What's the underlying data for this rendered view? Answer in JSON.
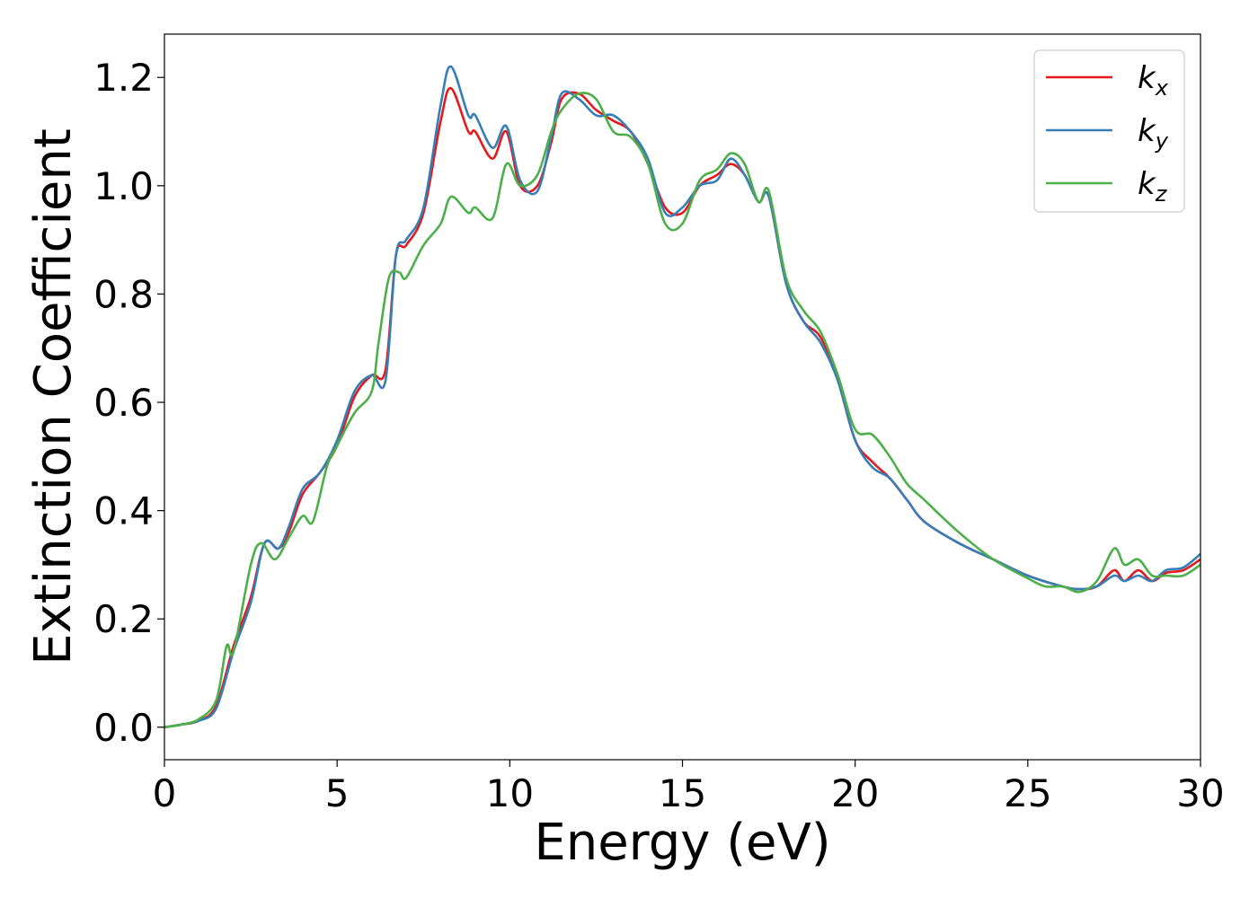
{
  "chart_data": {
    "type": "line",
    "title": "",
    "xlabel": "Energy (eV)",
    "ylabel": "Extinction Coefficient",
    "xlim": [
      0,
      30
    ],
    "ylim": [
      -0.06,
      1.28
    ],
    "xticks": [
      0,
      5,
      10,
      15,
      20,
      25,
      30
    ],
    "xtick_labels": [
      "0",
      "5",
      "10",
      "15",
      "20",
      "25",
      "30"
    ],
    "yticks": [
      0.0,
      0.2,
      0.4,
      0.6,
      0.8,
      1.0,
      1.2
    ],
    "ytick_labels": [
      "0.0",
      "0.2",
      "0.4",
      "0.6",
      "0.8",
      "1.0",
      "1.2"
    ],
    "grid": false,
    "legend_position": "top-right",
    "series": [
      {
        "name": "k_x",
        "label_main": "k",
        "label_sub": "x",
        "color": "#e41a1c",
        "points": [
          [
            0,
            0
          ],
          [
            0.5,
            0.005
          ],
          [
            1.0,
            0.012
          ],
          [
            1.5,
            0.04
          ],
          [
            2.0,
            0.15
          ],
          [
            2.5,
            0.24
          ],
          [
            2.9,
            0.34
          ],
          [
            3.3,
            0.33
          ],
          [
            3.6,
            0.36
          ],
          [
            4.0,
            0.43
          ],
          [
            4.5,
            0.47
          ],
          [
            5.0,
            0.52
          ],
          [
            5.5,
            0.61
          ],
          [
            6.0,
            0.65
          ],
          [
            6.4,
            0.66
          ],
          [
            6.7,
            0.87
          ],
          [
            7.0,
            0.89
          ],
          [
            7.5,
            0.95
          ],
          [
            8.0,
            1.12
          ],
          [
            8.3,
            1.18
          ],
          [
            8.8,
            1.1
          ],
          [
            9.0,
            1.1
          ],
          [
            9.5,
            1.05
          ],
          [
            9.9,
            1.1
          ],
          [
            10.3,
            1.0
          ],
          [
            10.8,
            1.0
          ],
          [
            11.2,
            1.08
          ],
          [
            11.5,
            1.16
          ],
          [
            12.0,
            1.17
          ],
          [
            12.5,
            1.14
          ],
          [
            13.0,
            1.12
          ],
          [
            13.5,
            1.1
          ],
          [
            14.0,
            1.04
          ],
          [
            14.5,
            0.96
          ],
          [
            15.0,
            0.95
          ],
          [
            15.5,
            1.0
          ],
          [
            16.0,
            1.02
          ],
          [
            16.4,
            1.04
          ],
          [
            16.8,
            1.02
          ],
          [
            17.2,
            0.97
          ],
          [
            17.5,
            0.98
          ],
          [
            18.0,
            0.82
          ],
          [
            18.5,
            0.75
          ],
          [
            19.0,
            0.72
          ],
          [
            19.5,
            0.64
          ],
          [
            20.0,
            0.53
          ],
          [
            20.5,
            0.49
          ],
          [
            21.0,
            0.46
          ],
          [
            21.5,
            0.42
          ],
          [
            22.0,
            0.38
          ],
          [
            23.0,
            0.34
          ],
          [
            24.0,
            0.31
          ],
          [
            25.0,
            0.28
          ],
          [
            26.0,
            0.26
          ],
          [
            26.5,
            0.255
          ],
          [
            27.0,
            0.26
          ],
          [
            27.5,
            0.29
          ],
          [
            27.8,
            0.27
          ],
          [
            28.2,
            0.29
          ],
          [
            28.6,
            0.27
          ],
          [
            29.0,
            0.285
          ],
          [
            29.5,
            0.29
          ],
          [
            30.0,
            0.31
          ]
        ]
      },
      {
        "name": "k_y",
        "label_main": "k",
        "label_sub": "y",
        "color": "#377eb8",
        "points": [
          [
            0,
            0
          ],
          [
            0.5,
            0.005
          ],
          [
            1.0,
            0.012
          ],
          [
            1.5,
            0.035
          ],
          [
            2.0,
            0.14
          ],
          [
            2.5,
            0.23
          ],
          [
            2.9,
            0.34
          ],
          [
            3.3,
            0.33
          ],
          [
            3.6,
            0.37
          ],
          [
            4.0,
            0.44
          ],
          [
            4.5,
            0.47
          ],
          [
            5.0,
            0.53
          ],
          [
            5.5,
            0.62
          ],
          [
            6.0,
            0.65
          ],
          [
            6.4,
            0.64
          ],
          [
            6.7,
            0.87
          ],
          [
            7.0,
            0.9
          ],
          [
            7.5,
            0.96
          ],
          [
            8.0,
            1.15
          ],
          [
            8.3,
            1.22
          ],
          [
            8.8,
            1.13
          ],
          [
            9.0,
            1.13
          ],
          [
            9.5,
            1.07
          ],
          [
            9.9,
            1.11
          ],
          [
            10.3,
            1.01
          ],
          [
            10.8,
            0.99
          ],
          [
            11.2,
            1.09
          ],
          [
            11.5,
            1.17
          ],
          [
            12.0,
            1.16
          ],
          [
            12.5,
            1.13
          ],
          [
            13.0,
            1.13
          ],
          [
            13.5,
            1.1
          ],
          [
            14.0,
            1.05
          ],
          [
            14.5,
            0.95
          ],
          [
            15.0,
            0.96
          ],
          [
            15.5,
            1.0
          ],
          [
            16.0,
            1.01
          ],
          [
            16.4,
            1.05
          ],
          [
            16.8,
            1.02
          ],
          [
            17.2,
            0.97
          ],
          [
            17.5,
            0.98
          ],
          [
            18.0,
            0.82
          ],
          [
            18.5,
            0.75
          ],
          [
            19.0,
            0.71
          ],
          [
            19.5,
            0.64
          ],
          [
            20.0,
            0.53
          ],
          [
            20.5,
            0.48
          ],
          [
            21.0,
            0.46
          ],
          [
            21.5,
            0.42
          ],
          [
            22.0,
            0.38
          ],
          [
            23.0,
            0.34
          ],
          [
            24.0,
            0.31
          ],
          [
            25.0,
            0.28
          ],
          [
            26.0,
            0.26
          ],
          [
            26.5,
            0.255
          ],
          [
            27.0,
            0.26
          ],
          [
            27.5,
            0.28
          ],
          [
            27.8,
            0.27
          ],
          [
            28.2,
            0.28
          ],
          [
            28.6,
            0.27
          ],
          [
            29.0,
            0.29
          ],
          [
            29.5,
            0.295
          ],
          [
            30.0,
            0.32
          ]
        ]
      },
      {
        "name": "k_z",
        "label_main": "k",
        "label_sub": "z",
        "color": "#4daf4a",
        "points": [
          [
            0,
            0
          ],
          [
            0.5,
            0.005
          ],
          [
            1.0,
            0.015
          ],
          [
            1.5,
            0.05
          ],
          [
            1.8,
            0.15
          ],
          [
            2.0,
            0.14
          ],
          [
            2.5,
            0.3
          ],
          [
            2.8,
            0.34
          ],
          [
            3.2,
            0.31
          ],
          [
            3.6,
            0.35
          ],
          [
            4.0,
            0.39
          ],
          [
            4.3,
            0.38
          ],
          [
            4.7,
            0.48
          ],
          [
            5.0,
            0.52
          ],
          [
            5.5,
            0.58
          ],
          [
            6.0,
            0.62
          ],
          [
            6.2,
            0.71
          ],
          [
            6.5,
            0.83
          ],
          [
            6.8,
            0.84
          ],
          [
            7.0,
            0.83
          ],
          [
            7.5,
            0.89
          ],
          [
            8.0,
            0.93
          ],
          [
            8.3,
            0.98
          ],
          [
            8.8,
            0.95
          ],
          [
            9.0,
            0.96
          ],
          [
            9.5,
            0.94
          ],
          [
            9.9,
            1.04
          ],
          [
            10.3,
            1.0
          ],
          [
            10.8,
            1.02
          ],
          [
            11.2,
            1.1
          ],
          [
            11.5,
            1.14
          ],
          [
            12.0,
            1.17
          ],
          [
            12.5,
            1.16
          ],
          [
            13.0,
            1.1
          ],
          [
            13.5,
            1.09
          ],
          [
            14.0,
            1.04
          ],
          [
            14.5,
            0.93
          ],
          [
            15.0,
            0.93
          ],
          [
            15.5,
            1.01
          ],
          [
            16.0,
            1.03
          ],
          [
            16.4,
            1.06
          ],
          [
            16.8,
            1.04
          ],
          [
            17.2,
            0.97
          ],
          [
            17.5,
            0.99
          ],
          [
            18.0,
            0.83
          ],
          [
            18.5,
            0.77
          ],
          [
            19.0,
            0.73
          ],
          [
            19.5,
            0.65
          ],
          [
            20.0,
            0.55
          ],
          [
            20.5,
            0.54
          ],
          [
            21.0,
            0.5
          ],
          [
            21.5,
            0.45
          ],
          [
            22.0,
            0.42
          ],
          [
            23.0,
            0.36
          ],
          [
            24.0,
            0.31
          ],
          [
            25.0,
            0.275
          ],
          [
            25.5,
            0.26
          ],
          [
            26.0,
            0.26
          ],
          [
            26.5,
            0.25
          ],
          [
            27.0,
            0.27
          ],
          [
            27.5,
            0.33
          ],
          [
            27.8,
            0.3
          ],
          [
            28.2,
            0.31
          ],
          [
            28.6,
            0.28
          ],
          [
            29.0,
            0.28
          ],
          [
            29.5,
            0.28
          ],
          [
            30.0,
            0.3
          ]
        ]
      }
    ]
  }
}
